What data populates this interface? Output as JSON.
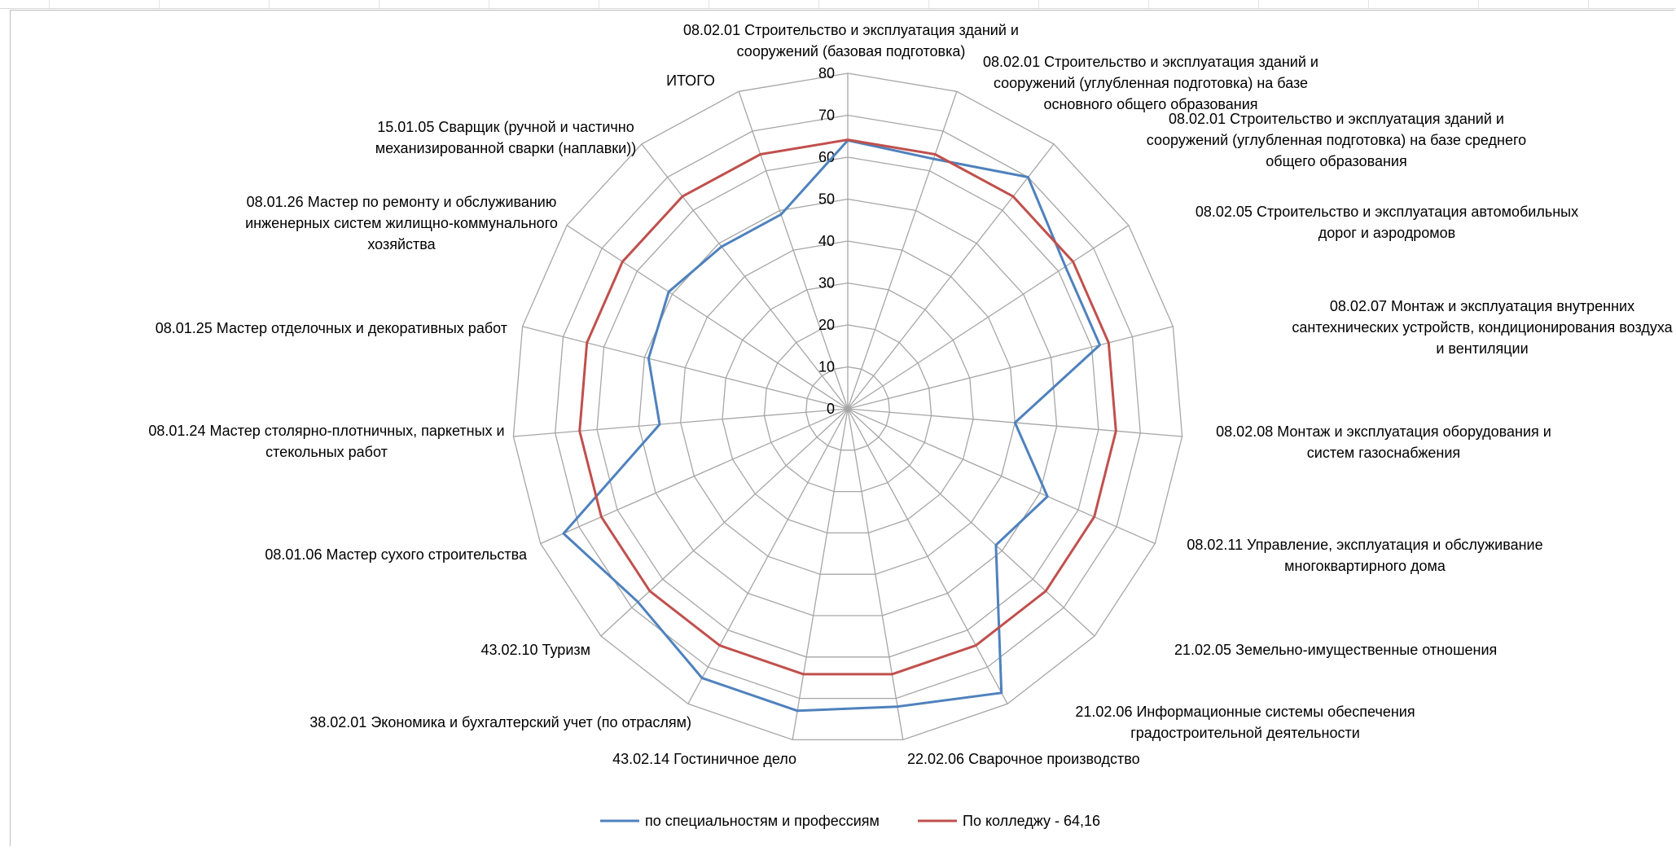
{
  "chart_data": {
    "type": "radar",
    "title": "",
    "categories": [
      "ИТОГО",
      "08.02.01 Строительство и эксплуатация зданий и сооружений (базовая подготовка)",
      "08.02.01 Строительство и эксплуатация зданий и сооружений (углубленная подготовка) на базе основного общего образования",
      "08.02.01 Строительство и эксплуатация зданий и сооружений (углубленная подготовка) на базе среднего общего образования",
      "08.02.05 Строительство и эксплуатация автомобильных дорог и аэродромов",
      "08.02.07 Монтаж и эксплуатация внутренних сантехнических устройств, кондиционирования воздуха и вентиляции",
      "08.02.08 Монтаж и эксплуатация оборудования и систем газоснабжения",
      "08.02.11 Управление, эксплуатация и обслуживание многоквартирного дома",
      "21.02.05 Земельно-имущественные отношения",
      "21.02.06 Информационные системы обеспечения градостроительной деятельности",
      "22.02.06 Сварочное производство",
      "43.02.14 Гостиничное дело",
      "38.02.01 Экономика и бухгалтерский учет (по отраслям)",
      "43.02.10 Туризм",
      "08.01.06 Мастер сухого строительства",
      "08.01.24 Мастер столярно-плотничных, паркетных и стекольных работ",
      "08.01.25 Мастер отделочных и декоративных работ",
      "08.01.26 Мастер по ремонту и обслуживанию инженерных систем жилищно-коммунального хозяйства",
      "15.01.05 Сварщик (ручной и частично механизированной сварки (наплавки))"
    ],
    "series": [
      {
        "name": "по специальностям и профессиям",
        "color": "#4f81bd",
        "values": [
          64,
          63,
          70,
          62,
          62,
          40,
          52,
          48,
          77,
          72,
          73,
          73,
          68,
          74,
          45,
          49,
          51,
          49,
          49
        ]
      },
      {
        "name": "По колледжу - 64,16",
        "color": "#c0504d",
        "values": [
          64.16,
          64.16,
          64.16,
          64.16,
          64.16,
          64.16,
          64.16,
          64.16,
          64.16,
          64.16,
          64.16,
          64.16,
          64.16,
          64.16,
          64.16,
          64.16,
          64.16,
          64.16,
          64.16
        ]
      }
    ],
    "rlim": [
      0,
      80
    ],
    "ticks": [
      "0",
      "10",
      "20",
      "30",
      "40",
      "50",
      "60",
      "70",
      "80"
    ],
    "grid": true,
    "legend": "bottom"
  }
}
